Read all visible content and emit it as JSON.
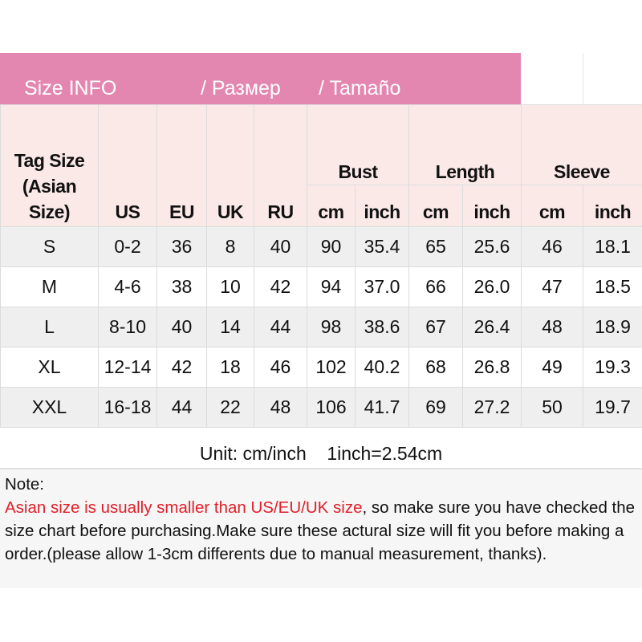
{
  "banner": {
    "en": "Size INFO",
    "ru": "/  Размер",
    "es": "/  Tamaño"
  },
  "headers": {
    "tag": "Tag Size (Asian Size)",
    "us": "US",
    "eu": "EU",
    "uk": "UK",
    "ru": "RU",
    "bust": "Bust",
    "length": "Length",
    "sleeve": "Sleeve",
    "cm": "cm",
    "inch": "inch"
  },
  "rows": [
    [
      "S",
      "0-2",
      "36",
      "8",
      "40",
      "90",
      "35.4",
      "65",
      "25.6",
      "46",
      "18.1"
    ],
    [
      "M",
      "4-6",
      "38",
      "10",
      "42",
      "94",
      "37.0",
      "66",
      "26.0",
      "47",
      "18.5"
    ],
    [
      "L",
      "8-10",
      "40",
      "14",
      "44",
      "98",
      "38.6",
      "67",
      "26.4",
      "48",
      "18.9"
    ],
    [
      "XL",
      "12-14",
      "42",
      "18",
      "46",
      "102",
      "40.2",
      "68",
      "26.8",
      "49",
      "19.3"
    ],
    [
      "XXL",
      "16-18",
      "44",
      "22",
      "48",
      "106",
      "41.7",
      "69",
      "27.2",
      "50",
      "19.7"
    ]
  ],
  "unit": "Unit: cm/inch    1inch=2.54cm",
  "note": {
    "label": "Note:",
    "warning": "Asian size is usually smaller than US/EU/UK size",
    "text": ", so make sure you have checked the size chart before purchasing.Make sure these actural size will fit you before making a order.(please allow 1-3cm differents due to manual measurement, thanks)."
  },
  "colors": {
    "banner": "#e386b0",
    "header": "#fbe9e8",
    "warning": "#e0202a"
  }
}
